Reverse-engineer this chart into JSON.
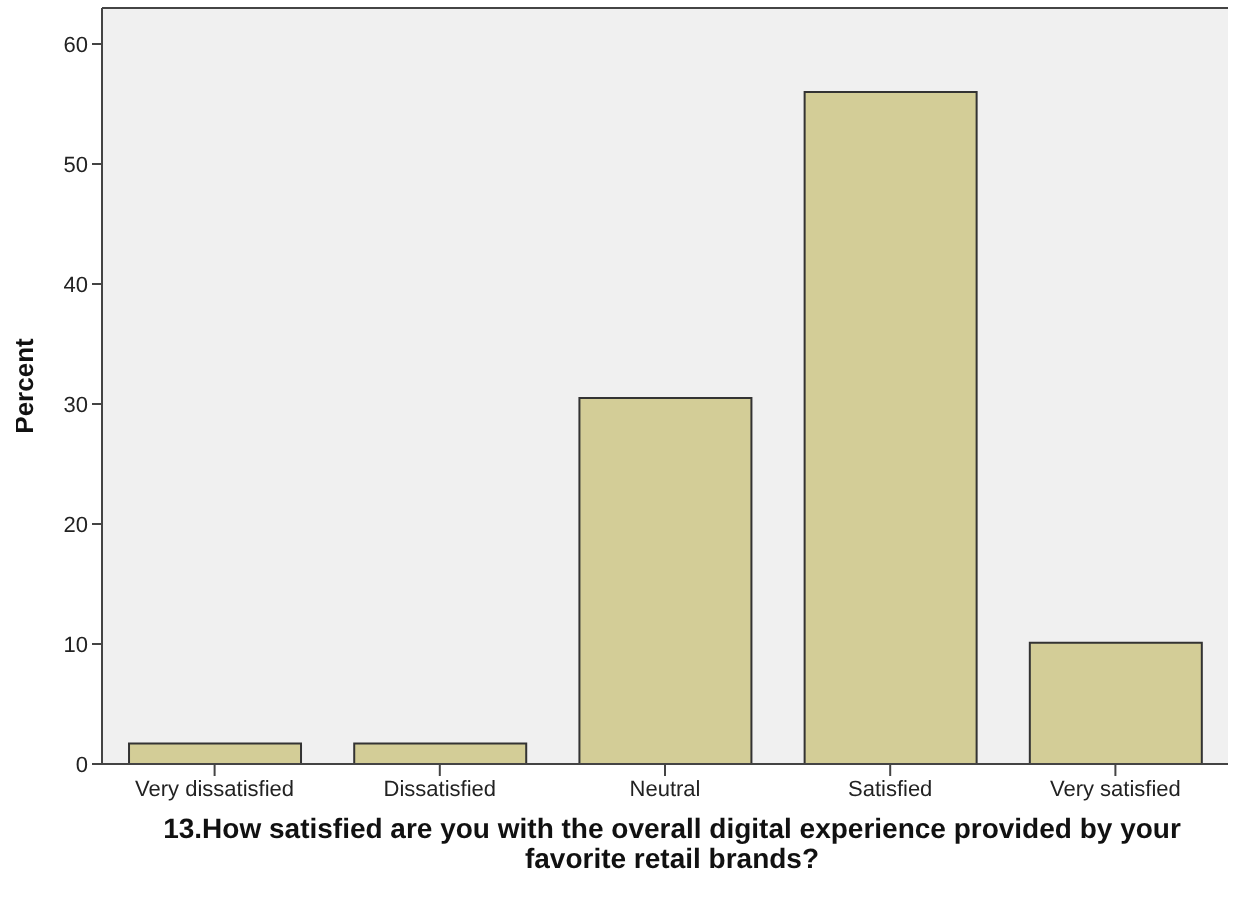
{
  "chart_data": {
    "type": "bar",
    "xlabel": "13.How satisfied are you with the overall digital experience provided by your favorite retail brands?",
    "ylabel": "Percent",
    "categories": [
      "Very dissatisfied",
      "Dissatisfied",
      "Neutral",
      "Satisfied",
      "Very satisfied"
    ],
    "values": [
      1.7,
      1.7,
      30.5,
      56.0,
      10.1
    ],
    "color": "#d3cd97",
    "ylim": [
      0,
      63
    ],
    "yticks": [
      0,
      10,
      20,
      30,
      40,
      50,
      60
    ],
    "grid": false
  }
}
